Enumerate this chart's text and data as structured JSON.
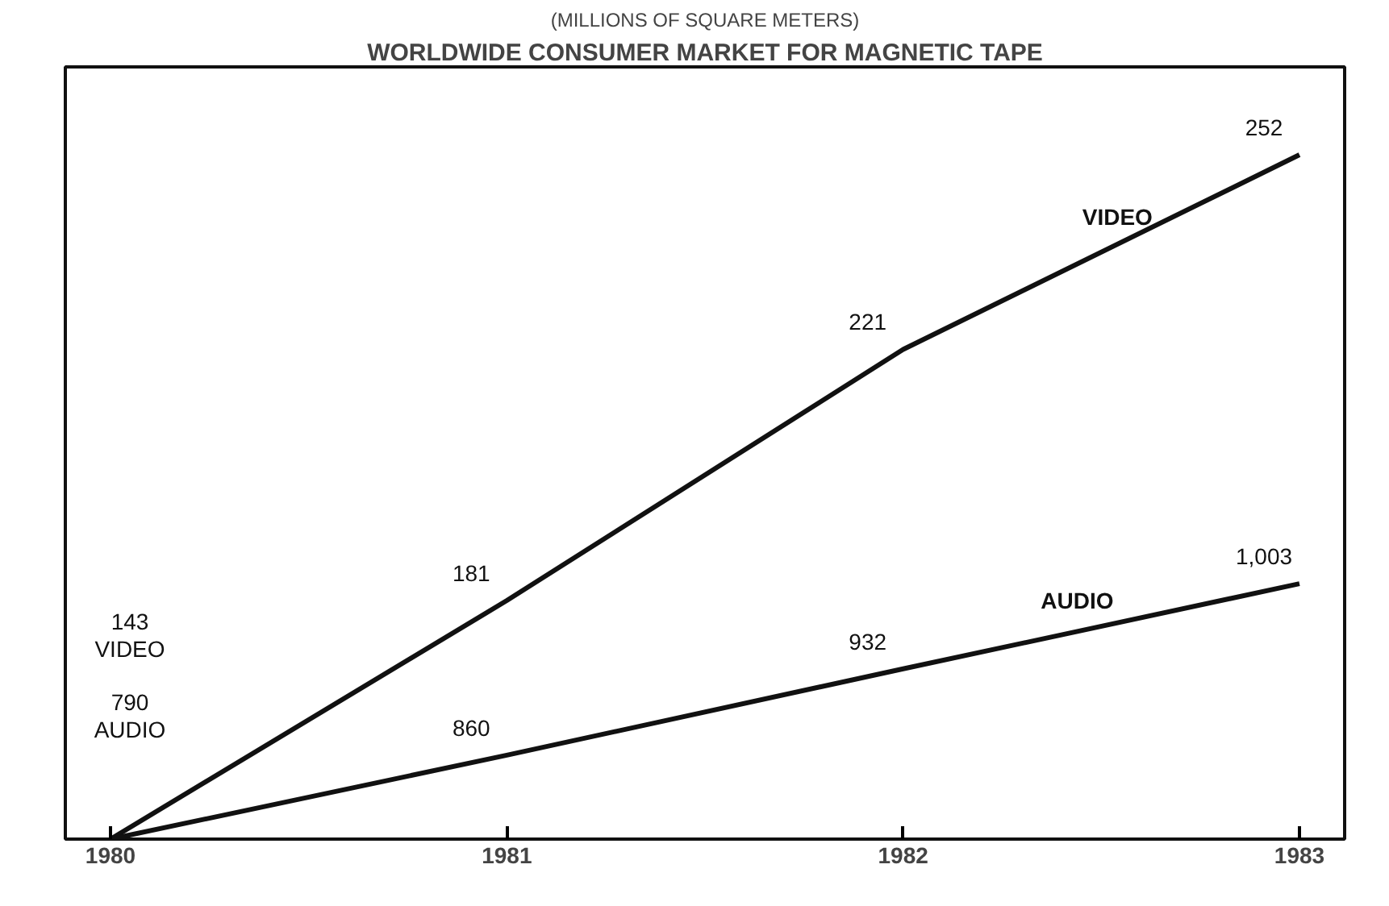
{
  "chart_data": {
    "type": "line",
    "title": "WORLDWIDE CONSUMER MARKET FOR MAGNETIC TAPE",
    "subtitle": "(MILLIONS OF SQUARE METERS)",
    "categories": [
      "1980",
      "1981",
      "1982",
      "1983"
    ],
    "series": [
      {
        "name": "VIDEO",
        "color": "#111111",
        "values": [
          143,
          181,
          221,
          252
        ],
        "value_labels": [
          null,
          "181",
          "221",
          "252"
        ]
      },
      {
        "name": "AUDIO",
        "color": "#111111",
        "values": [
          790,
          860,
          932,
          1003
        ],
        "value_labels": [
          null,
          "860",
          "932",
          "1,003"
        ],
        "axis": "y2"
      }
    ],
    "annotations": [
      "143",
      "VIDEO",
      "790",
      "AUDIO"
    ],
    "ylim": [
      143,
      266
    ],
    "y2lim": [
      790,
      1434
    ],
    "tick_labels": "x",
    "grid": false,
    "marker": "none",
    "line_style": "solid"
  }
}
